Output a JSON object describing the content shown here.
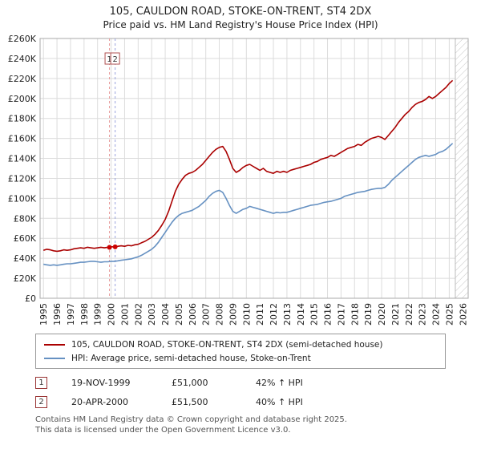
{
  "title": "105, CAULDON ROAD, STOKE-ON-TRENT, ST4 2DX",
  "subtitle": "Price paid vs. HM Land Registry's House Price Index (HPI)",
  "chart_data": {
    "type": "line",
    "x_start": 1995.0,
    "x_step": 0.25,
    "xlim": [
      1994.75,
      2026.4
    ],
    "ylim": [
      0,
      260000
    ],
    "y_tick_step": 20000,
    "y_unit": "GBP",
    "grid": true,
    "legend_position": "bottom",
    "x_ticks": [
      1995,
      1996,
      1997,
      1998,
      1999,
      2000,
      2001,
      2002,
      2003,
      2004,
      2005,
      2006,
      2007,
      2008,
      2009,
      2010,
      2011,
      2012,
      2013,
      2014,
      2015,
      2016,
      2017,
      2018,
      2019,
      2020,
      2021,
      2022,
      2023,
      2024,
      2025,
      2026
    ],
    "series": [
      {
        "name": "105, CAULDON ROAD, STOKE-ON-TRENT, ST4 2DX (semi-detached house)",
        "color": "#aa0000",
        "values": [
          48000,
          49000,
          48500,
          47500,
          47000,
          47500,
          48500,
          48000,
          48500,
          49500,
          50000,
          50500,
          50000,
          51000,
          50500,
          50000,
          50500,
          51000,
          50500,
          51000,
          51500,
          51500,
          52000,
          52500,
          52000,
          53000,
          52500,
          53500,
          54000,
          55500,
          57000,
          59000,
          61000,
          64000,
          68000,
          73000,
          79000,
          87000,
          97000,
          107000,
          114000,
          119000,
          123000,
          125000,
          126000,
          128000,
          131000,
          134000,
          138000,
          142000,
          146000,
          149000,
          151000,
          152000,
          147000,
          139000,
          130000,
          126000,
          128000,
          131000,
          133000,
          134000,
          132000,
          130000,
          128000,
          130000,
          127000,
          126000,
          125000,
          127000,
          126000,
          127000,
          126000,
          128000,
          129000,
          130000,
          131000,
          132000,
          133000,
          134000,
          136000,
          137000,
          139000,
          140000,
          141000,
          143000,
          142000,
          144000,
          146000,
          148000,
          150000,
          151000,
          152000,
          154000,
          153000,
          156000,
          158000,
          160000,
          161000,
          162000,
          161000,
          159000,
          163000,
          167000,
          171000,
          176000,
          180000,
          184000,
          187000,
          191000,
          194000,
          196000,
          197000,
          199000,
          202000,
          200000,
          202000,
          205000,
          208000,
          211000,
          215000,
          218000
        ]
      },
      {
        "name": "HPI: Average price, semi-detached house, Stoke-on-Trent",
        "color": "#6691c2",
        "values": [
          34000,
          33500,
          33000,
          33500,
          33000,
          33500,
          34000,
          34500,
          34500,
          35000,
          35500,
          36000,
          36000,
          36500,
          37000,
          37000,
          36500,
          36000,
          36500,
          36500,
          37000,
          37000,
          37500,
          38000,
          38500,
          39000,
          39500,
          40500,
          41500,
          43000,
          45000,
          47000,
          49000,
          52000,
          56000,
          61000,
          66000,
          71000,
          76000,
          80000,
          83000,
          85000,
          86000,
          87000,
          88000,
          90000,
          92000,
          95000,
          98000,
          102000,
          105000,
          107000,
          108000,
          106000,
          100000,
          93000,
          87000,
          85000,
          87000,
          89000,
          90000,
          92000,
          91000,
          90000,
          89000,
          88000,
          87000,
          86000,
          85000,
          86000,
          85500,
          86000,
          86000,
          87000,
          88000,
          89000,
          90000,
          91000,
          92000,
          93000,
          93500,
          94000,
          95000,
          96000,
          96500,
          97000,
          98000,
          99000,
          100000,
          102000,
          103000,
          104000,
          105000,
          106000,
          106500,
          107000,
          108000,
          109000,
          109500,
          110000,
          110000,
          111000,
          114000,
          118000,
          121000,
          124000,
          127000,
          130000,
          133000,
          136000,
          139000,
          141000,
          142000,
          143000,
          142000,
          143000,
          144000,
          146000,
          147000,
          149000,
          152000,
          155000
        ]
      }
    ],
    "sale_markers": [
      {
        "label": "1",
        "x": 1999.88,
        "y": 51000,
        "line_color": "#e89a9a"
      },
      {
        "label": "2",
        "x": 2000.3,
        "y": 51500,
        "line_color": "#9aa4dd"
      }
    ],
    "point_color": "#cc0000",
    "hatch_region": {
      "x_start": 2025.45
    }
  },
  "transactions": [
    {
      "num": "1",
      "date": "19-NOV-1999",
      "price": "£51,000",
      "hpi_change": "42% ↑ HPI"
    },
    {
      "num": "2",
      "date": "20-APR-2000",
      "price": "£51,500",
      "hpi_change": "40% ↑ HPI"
    }
  ],
  "footer": {
    "line1": "Contains HM Land Registry data © Crown copyright and database right 2025.",
    "line2": "This data is licensed under the Open Government Licence v3.0."
  }
}
